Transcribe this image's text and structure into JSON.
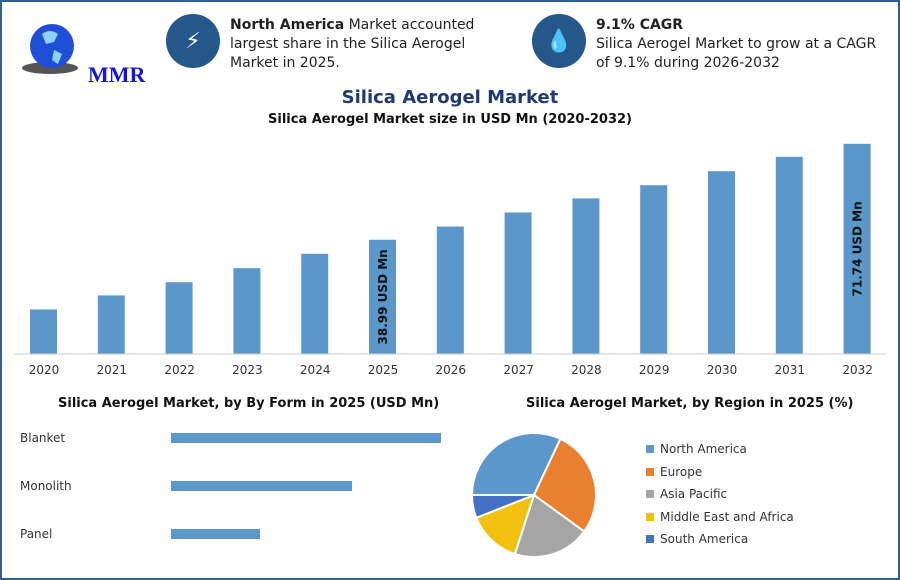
{
  "header": {
    "logo_text": "MMR",
    "info1": {
      "icon": "lightning-icon",
      "bold": "North America",
      "text": " Market accounted largest share in the Silica Aerogel Market in 2025."
    },
    "info2": {
      "icon": "flame-drop-icon",
      "bold": "9.1% CAGR",
      "text": "Silica Aerogel Market to grow at a CAGR of 9.1% during 2026-2032"
    }
  },
  "title": "Silica Aerogel Market",
  "colors": {
    "bar": "#5b97c9",
    "accent": "#24578a",
    "title": "#1f3a6e"
  },
  "chart_data": [
    {
      "type": "bar",
      "title": "Silica Aerogel Market size in USD Mn (2020-2032)",
      "categories": [
        "2020",
        "2021",
        "2022",
        "2023",
        "2024",
        "2025",
        "2026",
        "2027",
        "2028",
        "2029",
        "2030",
        "2031",
        "2032"
      ],
      "values": [
        15.2,
        20.0,
        24.5,
        29.3,
        34.2,
        38.99,
        43.5,
        48.3,
        53.1,
        57.6,
        62.4,
        67.3,
        71.74
      ],
      "annotations": [
        {
          "category": "2025",
          "text": "38.99 USD Mn"
        },
        {
          "category": "2032",
          "text": "71.74 USD Mn"
        }
      ],
      "ylim": [
        0,
        75
      ],
      "grid": false
    },
    {
      "type": "bar",
      "orientation": "horizontal",
      "title": "Silica Aerogel Market, by By Form in 2025 (USD Mn)",
      "categories": [
        "Blanket",
        "Monolith",
        "Panel"
      ],
      "values_relative": [
        1.0,
        0.67,
        0.33
      ]
    },
    {
      "type": "pie",
      "title": "Silica Aerogel Market, by Region in 2025 (%)",
      "categories": [
        "North America",
        "Europe",
        "Asia Pacific",
        "Middle East and Africa",
        "South America"
      ],
      "values": [
        32,
        28,
        20,
        14,
        6
      ],
      "colors": [
        "#5b97c9",
        "#e8802f",
        "#a5a5a5",
        "#f2c10f",
        "#4670c4"
      ],
      "legend": "right"
    }
  ]
}
